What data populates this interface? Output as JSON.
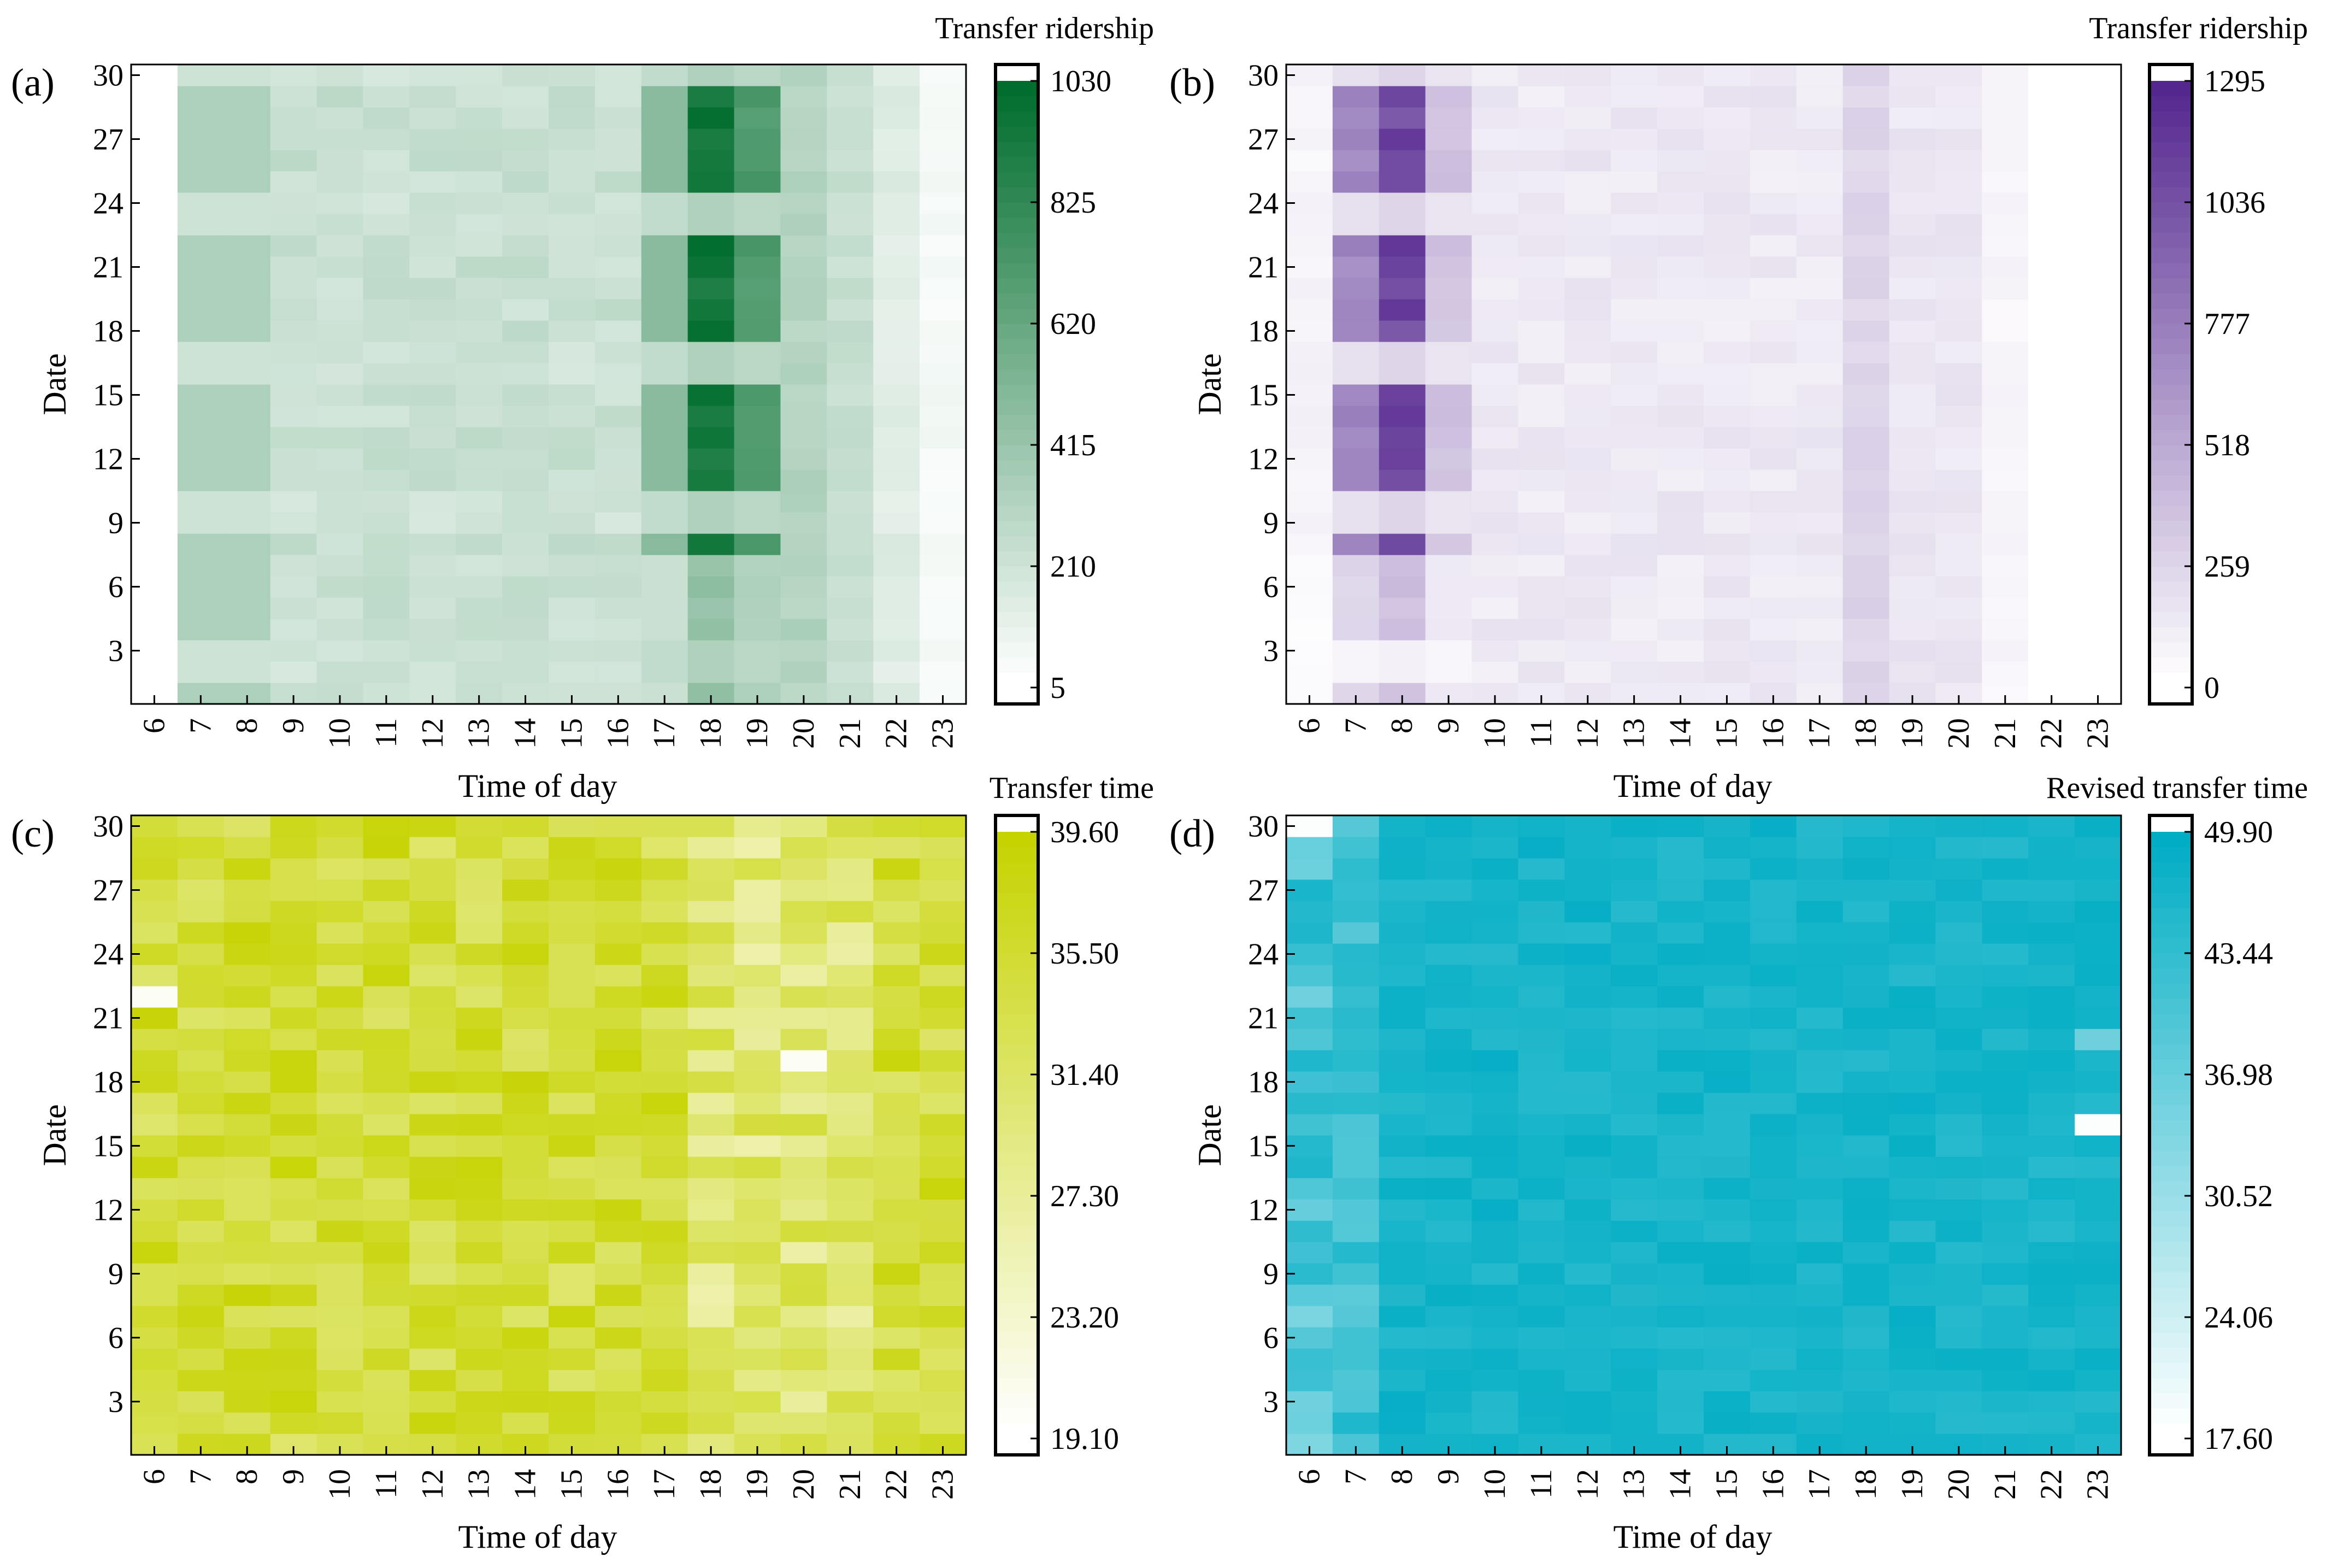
{
  "chart_data": [
    {
      "type": "heatmap",
      "panel_label": "(a)",
      "title": "",
      "xlabel": "Time of day",
      "ylabel": "Date",
      "x_categories": [
        "6",
        "7",
        "8",
        "9",
        "10",
        "11",
        "12",
        "13",
        "14",
        "15",
        "16",
        "17",
        "18",
        "19",
        "20",
        "21",
        "22",
        "23"
      ],
      "y_range": [
        1,
        30
      ],
      "y_ticks": [
        "3",
        "6",
        "9",
        "12",
        "15",
        "18",
        "21",
        "24",
        "27",
        "30"
      ],
      "colorbar": {
        "title": "Transfer ridership",
        "range": [
          5,
          1030
        ],
        "ticks": [
          "5",
          "210",
          "415",
          "620",
          "825",
          "1030"
        ],
        "color_low": "#ffffff",
        "color_high": "#006d2c"
      },
      "pattern": "ridership",
      "scale_max": 1030
    },
    {
      "type": "heatmap",
      "panel_label": "(b)",
      "title": "",
      "xlabel": "Time of day",
      "ylabel": "Date",
      "x_categories": [
        "6",
        "7",
        "8",
        "9",
        "10",
        "11",
        "12",
        "13",
        "14",
        "15",
        "16",
        "17",
        "18",
        "19",
        "20",
        "21",
        "22",
        "23"
      ],
      "y_range": [
        1,
        30
      ],
      "y_ticks": [
        "3",
        "6",
        "9",
        "12",
        "15",
        "18",
        "21",
        "24",
        "27",
        "30"
      ],
      "colorbar": {
        "title": "Transfer ridership",
        "range": [
          0,
          1295
        ],
        "ticks": [
          "0",
          "259",
          "518",
          "777",
          "1036",
          "1295"
        ],
        "color_low": "#ffffff",
        "color_high": "#54278f"
      },
      "pattern": "ridership_morning",
      "scale_max": 1295
    },
    {
      "type": "heatmap",
      "panel_label": "(c)",
      "title": "",
      "xlabel": "Time of day",
      "ylabel": "Date",
      "x_categories": [
        "6",
        "7",
        "8",
        "9",
        "10",
        "11",
        "12",
        "13",
        "14",
        "15",
        "16",
        "17",
        "18",
        "19",
        "20",
        "21",
        "22",
        "23"
      ],
      "y_range": [
        1,
        30
      ],
      "y_ticks": [
        "3",
        "6",
        "9",
        "12",
        "15",
        "18",
        "21",
        "24",
        "27",
        "30"
      ],
      "colorbar": {
        "title": "Transfer time",
        "range": [
          19.1,
          39.6
        ],
        "ticks": [
          "19.10",
          "23.20",
          "27.30",
          "31.40",
          "35.50",
          "39.60"
        ],
        "color_low": "#ffffff",
        "color_high": "#c6d300"
      },
      "pattern": "time",
      "scale_max": 39.6
    },
    {
      "type": "heatmap",
      "panel_label": "(d)",
      "title": "",
      "xlabel": "Time of day",
      "ylabel": "Date",
      "x_categories": [
        "6",
        "7",
        "8",
        "9",
        "10",
        "11",
        "12",
        "13",
        "14",
        "15",
        "16",
        "17",
        "18",
        "19",
        "20",
        "21",
        "22",
        "23"
      ],
      "y_range": [
        1,
        30
      ],
      "y_ticks": [
        "3",
        "6",
        "9",
        "12",
        "15",
        "18",
        "21",
        "24",
        "27",
        "30"
      ],
      "colorbar": {
        "title": "Revised transfer time",
        "range": [
          17.6,
          49.9
        ],
        "ticks": [
          "17.60",
          "24.06",
          "30.52",
          "36.98",
          "43.44",
          "49.90"
        ],
        "color_low": "#ffffff",
        "color_high": "#00adc4"
      },
      "pattern": "revised_time",
      "scale_max": 49.9
    }
  ]
}
